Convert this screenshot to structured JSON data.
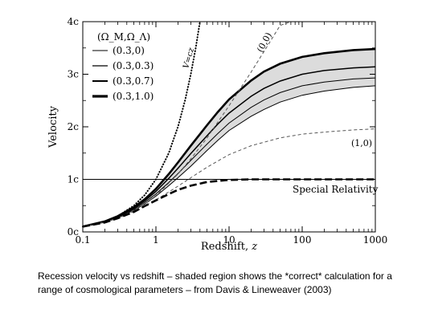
{
  "chart_data": {
    "type": "line",
    "xlabel": "Redshift,",
    "xlabel_italic": "z",
    "ylabel": "Velocity",
    "x_scale": "log",
    "xlim": [
      0.1,
      1000
    ],
    "ylim": [
      0,
      4
    ],
    "x_ticks": [
      {
        "value": 0.1,
        "label": "0.1"
      },
      {
        "value": 1,
        "label": "1"
      },
      {
        "value": 10,
        "label": "10"
      },
      {
        "value": 100,
        "label": "100"
      },
      {
        "value": 1000,
        "label": "1000"
      }
    ],
    "y_ticks": [
      {
        "value": 0,
        "label": "0c"
      },
      {
        "value": 1,
        "label": "1c"
      },
      {
        "value": 2,
        "label": "2c"
      },
      {
        "value": 3,
        "label": "3c"
      },
      {
        "value": 4,
        "label": "4c"
      }
    ],
    "legend": {
      "title": "(Ω_M,Ω_Λ)",
      "placement": "top-left",
      "entries": [
        "(0.3,0)",
        "(0.3,0.3)",
        "(0.3,0.7)",
        "(0.3,1.0)"
      ]
    },
    "shaded_region": {
      "lower_series": "(0.3,0)",
      "upper_series": "(0.3,1.0)",
      "color": "#dcdcdc"
    },
    "series": [
      {
        "name": "(0.3,0)",
        "style": "solid",
        "weight": "thin",
        "x": [
          0.1,
          0.2,
          0.3,
          0.5,
          0.7,
          1,
          1.5,
          2,
          3,
          5,
          7,
          10,
          20,
          30,
          50,
          100,
          200,
          500,
          1000
        ],
        "y": [
          0.1,
          0.19,
          0.27,
          0.41,
          0.53,
          0.68,
          0.88,
          1.03,
          1.25,
          1.55,
          1.74,
          1.93,
          2.2,
          2.33,
          2.47,
          2.6,
          2.68,
          2.75,
          2.78
        ]
      },
      {
        "name": "(0.3,0.3)",
        "style": "solid",
        "weight": "thin",
        "x": [
          0.1,
          0.2,
          0.3,
          0.5,
          0.7,
          1,
          1.5,
          2,
          3,
          5,
          7,
          10,
          20,
          30,
          50,
          100,
          200,
          500,
          1000
        ],
        "y": [
          0.1,
          0.2,
          0.28,
          0.43,
          0.56,
          0.72,
          0.94,
          1.11,
          1.36,
          1.67,
          1.87,
          2.07,
          2.37,
          2.51,
          2.65,
          2.78,
          2.85,
          2.91,
          2.93
        ]
      },
      {
        "name": "(0.3,0.7)",
        "style": "solid",
        "weight": "medium",
        "x": [
          0.1,
          0.2,
          0.3,
          0.5,
          0.7,
          1,
          1.5,
          2,
          3,
          5,
          7,
          10,
          20,
          30,
          50,
          100,
          200,
          500,
          1000
        ],
        "y": [
          0.1,
          0.2,
          0.29,
          0.45,
          0.59,
          0.77,
          1.02,
          1.21,
          1.49,
          1.83,
          2.05,
          2.26,
          2.58,
          2.73,
          2.87,
          3.0,
          3.07,
          3.12,
          3.14
        ]
      },
      {
        "name": "(0.3,1.0)",
        "style": "solid",
        "weight": "thick",
        "x": [
          0.1,
          0.2,
          0.3,
          0.5,
          0.7,
          1,
          1.5,
          2,
          3,
          5,
          7,
          10,
          20,
          30,
          50,
          100,
          200,
          500,
          1000
        ],
        "y": [
          0.1,
          0.2,
          0.3,
          0.47,
          0.62,
          0.82,
          1.1,
          1.32,
          1.64,
          2.03,
          2.28,
          2.52,
          2.88,
          3.05,
          3.2,
          3.33,
          3.4,
          3.46,
          3.48
        ]
      },
      {
        "name": "V=cz",
        "style": "dotted",
        "weight": "medium",
        "x": [
          0.1,
          0.2,
          0.3,
          0.5,
          0.7,
          1,
          1.5,
          2,
          2.5,
          3,
          3.5,
          4
        ],
        "y": [
          0.1,
          0.2,
          0.3,
          0.5,
          0.7,
          1.0,
          1.5,
          2.0,
          2.5,
          3.0,
          3.5,
          4.0
        ]
      },
      {
        "name": "(0,0)",
        "style": "dashed",
        "weight": "thin",
        "x": [
          0.1,
          0.2,
          0.3,
          0.5,
          0.7,
          1,
          2,
          3,
          5,
          10,
          20,
          30,
          50,
          70
        ],
        "y": [
          0.1,
          0.18,
          0.26,
          0.41,
          0.53,
          0.69,
          1.1,
          1.39,
          1.79,
          2.4,
          3.04,
          3.43,
          3.93,
          4.0
        ]
      },
      {
        "name": "(1,0)",
        "style": "dashed",
        "weight": "thin",
        "x": [
          0.1,
          0.2,
          0.3,
          0.5,
          0.7,
          1,
          1.5,
          2,
          3,
          5,
          10,
          20,
          50,
          100,
          200,
          500,
          1000
        ],
        "y": [
          0.1,
          0.19,
          0.26,
          0.39,
          0.49,
          0.61,
          0.76,
          0.87,
          1.03,
          1.23,
          1.47,
          1.64,
          1.79,
          1.86,
          1.9,
          1.94,
          1.96
        ]
      },
      {
        "name": "Special Relativity",
        "style": "dashed",
        "weight": "thick",
        "x": [
          0.1,
          0.2,
          0.3,
          0.5,
          0.7,
          1,
          1.5,
          2,
          3,
          5,
          10,
          20,
          50,
          100,
          1000
        ],
        "y": [
          0.1,
          0.18,
          0.26,
          0.38,
          0.49,
          0.6,
          0.72,
          0.8,
          0.88,
          0.95,
          0.99,
          1.0,
          1.0,
          1.0,
          1.0
        ]
      }
    ],
    "reference_lines": [
      {
        "axis": "y",
        "value": 1,
        "label": "Special Relativity"
      }
    ],
    "annotations": [
      {
        "text": "V=cz",
        "rotated": true
      },
      {
        "text": "(0,0)",
        "rotated": true
      },
      {
        "text": "(1,0)"
      },
      {
        "text": "Special Relativity"
      }
    ]
  },
  "caption": "Recession velocity vs redshift – shaded region shows the *correct* calculation for a range of cosmological parameters – from Davis & Lineweaver (2003)"
}
